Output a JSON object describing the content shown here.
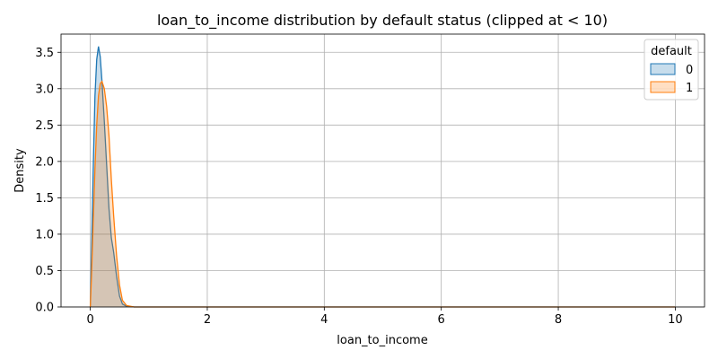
{
  "chart_data": {
    "type": "area",
    "title": "loan_to_income distribution by default status (clipped at < 10)",
    "xlabel": "loan_to_income",
    "ylabel": "Density",
    "xlim": [
      -0.5,
      10.5
    ],
    "ylim": [
      0,
      3.75
    ],
    "xticks": [
      0,
      2,
      4,
      6,
      8,
      10
    ],
    "xtick_labels": [
      "0",
      "2",
      "4",
      "6",
      "8",
      "10"
    ],
    "yticks": [
      0.0,
      0.5,
      1.0,
      1.5,
      2.0,
      2.5,
      3.0,
      3.5
    ],
    "ytick_labels": [
      "0.0",
      "0.5",
      "1.0",
      "1.5",
      "2.0",
      "2.5",
      "3.0",
      "3.5"
    ],
    "grid": true,
    "legend": {
      "title": "default",
      "placement": "top-right"
    },
    "series": [
      {
        "name": "0",
        "color": "#1f77b4",
        "fill": "#1f77b4",
        "x": [
          0.0,
          0.02,
          0.05,
          0.08,
          0.11,
          0.14,
          0.17,
          0.2,
          0.24,
          0.28,
          0.32,
          0.36,
          0.4,
          0.45,
          0.5,
          0.55,
          0.62,
          0.75,
          1.0,
          2.0,
          4.0,
          6.0,
          8.0,
          10.0
        ],
        "y": [
          0.0,
          0.7,
          1.9,
          2.9,
          3.4,
          3.58,
          3.44,
          3.1,
          2.55,
          1.95,
          1.35,
          0.95,
          0.75,
          0.42,
          0.15,
          0.04,
          0.01,
          0.0,
          0.0,
          0.0,
          0.0,
          0.0,
          0.0,
          0.0
        ]
      },
      {
        "name": "1",
        "color": "#ff7f0e",
        "fill": "#ff7f0e",
        "x": [
          0.0,
          0.02,
          0.05,
          0.08,
          0.11,
          0.14,
          0.17,
          0.2,
          0.24,
          0.28,
          0.32,
          0.36,
          0.4,
          0.45,
          0.5,
          0.55,
          0.62,
          0.75,
          1.0,
          2.0,
          4.0,
          6.0,
          8.0,
          10.0
        ],
        "y": [
          0.0,
          0.4,
          1.15,
          1.9,
          2.5,
          2.9,
          3.07,
          3.1,
          3.0,
          2.75,
          2.35,
          1.75,
          1.25,
          0.7,
          0.3,
          0.09,
          0.02,
          0.0,
          0.0,
          0.0,
          0.0,
          0.0,
          0.0,
          0.0
        ]
      }
    ]
  }
}
